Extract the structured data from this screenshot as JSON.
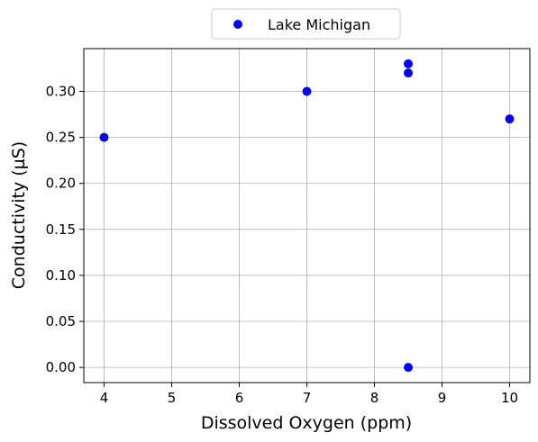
{
  "chart_data": {
    "type": "scatter",
    "title": "",
    "xlabel": "Dissolved Oxygen (ppm)",
    "ylabel": "Conductivity (µS)",
    "xlim": [
      3.7,
      10.3
    ],
    "ylim": [
      -0.0165,
      0.3465
    ],
    "xticks": [
      4,
      5,
      6,
      7,
      8,
      9,
      10
    ],
    "xtick_labels": [
      "4",
      "5",
      "6",
      "7",
      "8",
      "9",
      "10"
    ],
    "yticks": [
      0.0,
      0.05,
      0.1,
      0.15,
      0.2,
      0.25,
      0.3
    ],
    "ytick_labels": [
      "0.00",
      "0.05",
      "0.10",
      "0.15",
      "0.20",
      "0.25",
      "0.30"
    ],
    "grid": true,
    "legend_position": "top-center (outside, above plot)",
    "series": [
      {
        "name": "Lake Michigan",
        "color": "#0000ff",
        "x": [
          4,
          7,
          8.5,
          8.5,
          8.5,
          10
        ],
        "y": [
          0.25,
          0.3,
          0.33,
          0.32,
          0.0,
          0.27
        ]
      }
    ]
  }
}
